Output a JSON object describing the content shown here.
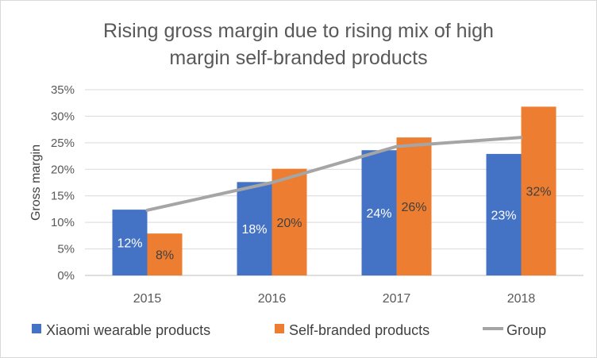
{
  "chart_data": {
    "type": "bar",
    "title_line1": "Rising gross margin due to rising mix of high",
    "title_line2": "margin self-branded  products",
    "ylabel": "Gross margin",
    "xlabel": "",
    "ylim": [
      0,
      35
    ],
    "yticks": [
      "0%",
      "5%",
      "10%",
      "15%",
      "20%",
      "25%",
      "30%",
      "35%"
    ],
    "categories": [
      "2015",
      "2016",
      "2017",
      "2018"
    ],
    "grid": true,
    "legend_position": "bottom",
    "series": [
      {
        "name": "Xiaomi wearable products",
        "type": "bar",
        "color": "#4472c4",
        "label_color": "#ffffff",
        "values": [
          12.4,
          17.6,
          23.6,
          22.9
        ],
        "labels": [
          "12%",
          "18%",
          "24%",
          "23%"
        ]
      },
      {
        "name": "Self-branded products",
        "type": "bar",
        "color": "#ed7d31",
        "label_color": "#404040",
        "values": [
          7.9,
          20.1,
          26.0,
          31.8
        ],
        "labels": [
          "8%",
          "20%",
          "26%",
          "32%"
        ]
      },
      {
        "name": "Group",
        "type": "line",
        "color": "#a5a5a5",
        "values": [
          12.3,
          17.5,
          24.3,
          26.0
        ]
      }
    ]
  }
}
